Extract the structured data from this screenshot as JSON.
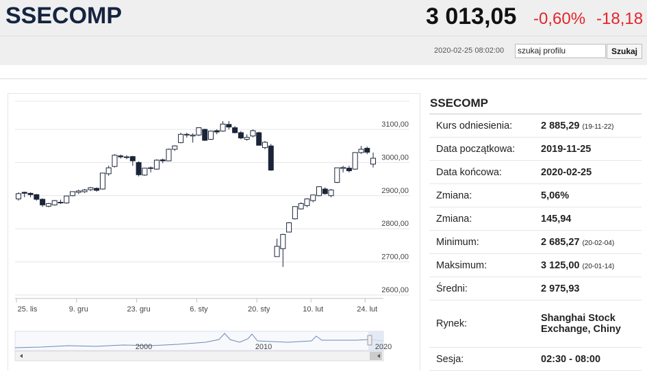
{
  "header": {
    "symbol": "SSECOMP",
    "price": "3 013,05",
    "change_pct": "-0,60%",
    "change": "-18,18",
    "timestamp": "2020-02-25 08:02:00",
    "search_placeholder": "szukaj profilu",
    "search_button": "Szukaj"
  },
  "chart_data": {
    "type": "candlestick",
    "categories": [
      "25. lis",
      null,
      null,
      null,
      null,
      null,
      null,
      null,
      null,
      null,
      "9. gru",
      null,
      null,
      null,
      null,
      null,
      null,
      null,
      null,
      null,
      "23. gru",
      null,
      null,
      null,
      null,
      null,
      null,
      null,
      null,
      null,
      "6. sty",
      null,
      null,
      null,
      null,
      null,
      null,
      null,
      null,
      null,
      "20. sty",
      null,
      null,
      null,
      null,
      null,
      null,
      null,
      null,
      "10. lut",
      null,
      null,
      null,
      null,
      null,
      null,
      null,
      null,
      "24. lut",
      null
    ],
    "open": [
      2890,
      2910,
      2907,
      2903,
      2889,
      2868,
      2872,
      2880,
      2878,
      2900,
      2910,
      2912,
      2918,
      2922,
      2920,
      2966,
      2988,
      3020,
      3016,
      3018,
      3000,
      2962,
      2984,
      2980,
      3008,
      3005,
      3040,
      3060,
      3085,
      3080,
      3083,
      3100,
      3070,
      3096,
      3095,
      3115,
      3105,
      3090,
      3070,
      3080,
      3090,
      3045,
      3050,
      2716,
      2740,
      2790,
      2830,
      2860,
      2870,
      2885,
      2900,
      2920,
      2900,
      2940,
      2982,
      2983,
      2980,
      3030,
      3043,
      2995
    ],
    "high": [
      2910,
      2912,
      2910,
      2905,
      2892,
      2878,
      2887,
      2888,
      2900,
      2913,
      2918,
      2920,
      2926,
      2925,
      2968,
      2990,
      3025,
      3024,
      3022,
      3020,
      3004,
      2984,
      2988,
      3010,
      3012,
      3042,
      3052,
      3090,
      3090,
      3088,
      3106,
      3102,
      3096,
      3100,
      3125,
      3125,
      3110,
      3095,
      3085,
      3100,
      3093,
      3065,
      3056,
      2770,
      2785,
      2820,
      2867,
      2880,
      2892,
      2903,
      2928,
      2925,
      2920,
      2984,
      2990,
      2990,
      3031,
      3050,
      3048,
      3030
    ],
    "low": [
      2885,
      2895,
      2895,
      2885,
      2866,
      2865,
      2870,
      2875,
      2876,
      2898,
      2905,
      2908,
      2914,
      2912,
      2918,
      2960,
      2985,
      3012,
      3010,
      2990,
      2958,
      2960,
      2970,
      2978,
      2998,
      3004,
      3035,
      3058,
      3075,
      3060,
      3080,
      3065,
      3068,
      3085,
      3093,
      3100,
      3088,
      3070,
      3066,
      3076,
      3052,
      3040,
      2975,
      2716,
      2685,
      2790,
      2828,
      2858,
      2865,
      2880,
      2898,
      2903,
      2895,
      2938,
      2970,
      2970,
      2978,
      3026,
      3025,
      2985
    ],
    "close": [
      2906,
      2907,
      2903,
      2889,
      2872,
      2876,
      2885,
      2878,
      2899,
      2912,
      2914,
      2917,
      2924,
      2916,
      2968,
      2984,
      3022,
      3017,
      3017,
      3005,
      2963,
      2983,
      2982,
      3007,
      3005,
      3040,
      3050,
      3085,
      3084,
      3083,
      3105,
      3067,
      3095,
      3092,
      3116,
      3107,
      3090,
      3074,
      3076,
      3096,
      3052,
      3061,
      2977,
      2747,
      2783,
      2818,
      2867,
      2876,
      2890,
      2902,
      2927,
      2906,
      2917,
      2984,
      2985,
      2975,
      3030,
      3040,
      3031,
      3013
    ],
    "up_color": "#ffffff",
    "down_color": "#1b2439",
    "ylim": [
      2600,
      3185
    ],
    "yticks": [
      {
        "value": 2600,
        "label": "2600,00"
      },
      {
        "value": 2700,
        "label": "2700,00"
      },
      {
        "value": 2800,
        "label": "2800,00"
      },
      {
        "value": 2900,
        "label": "2900,00"
      },
      {
        "value": 3000,
        "label": "3000,00"
      },
      {
        "value": 3100,
        "label": "3100,00"
      }
    ],
    "grid": true,
    "navigator": {
      "labels": [
        "2000",
        "2010",
        "2020"
      ]
    }
  },
  "info": {
    "title": "SSECOMP",
    "rows": [
      {
        "label": "Kurs odniesienia:",
        "value": "2 885,29",
        "note": "(19-11-22)"
      },
      {
        "label": "Data początkowa:",
        "value": "2019-11-25"
      },
      {
        "label": "Data końcowa:",
        "value": "2020-02-25"
      },
      {
        "label": "Zmiana:",
        "value": "5,06%"
      },
      {
        "label": "Zmiana:",
        "value": "145,94"
      },
      {
        "label": "Minimum:",
        "value": "2 685,27",
        "note": "(20-02-04)"
      },
      {
        "label": "Maksimum:",
        "value": "3 125,00",
        "note": "(20-01-14)"
      },
      {
        "label": "Średni:",
        "value": "2 975,93"
      },
      {
        "label": "Rynek:",
        "value": "Shanghai Stock Exchange, Chiny"
      },
      {
        "label": "Sesja:",
        "value": "02:30 - 08:00"
      }
    ]
  }
}
